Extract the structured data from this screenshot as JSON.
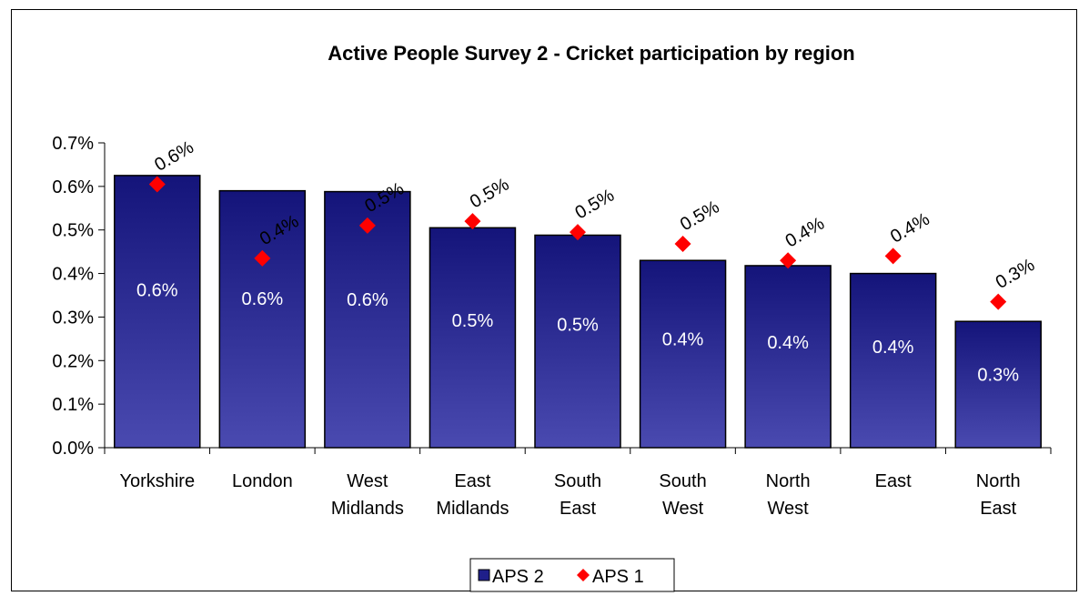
{
  "chart_data": {
    "type": "bar",
    "title": "Active People Survey 2 - Cricket participation by region",
    "categories": [
      [
        "Yorkshire"
      ],
      [
        "London"
      ],
      [
        "West",
        "Midlands"
      ],
      [
        "East",
        "Midlands"
      ],
      [
        "South",
        "East"
      ],
      [
        "South",
        "West"
      ],
      [
        "North",
        "West"
      ],
      [
        "East"
      ],
      [
        "North",
        "East"
      ]
    ],
    "series": [
      {
        "name": "APS 2",
        "kind": "bar",
        "values": [
          0.00625,
          0.0059,
          0.00588,
          0.00505,
          0.00488,
          0.0043,
          0.00418,
          0.004,
          0.0029
        ],
        "labels": [
          "0.6%",
          "0.6%",
          "0.6%",
          "0.5%",
          "0.5%",
          "0.4%",
          "0.4%",
          "0.4%",
          "0.3%"
        ],
        "color": "#1f1f8a"
      },
      {
        "name": "APS 1",
        "kind": "marker",
        "values": [
          0.00605,
          0.00435,
          0.0051,
          0.0052,
          0.00495,
          0.00468,
          0.0043,
          0.0044,
          0.00335
        ],
        "labels": [
          "0.6%",
          "0.4%",
          "0.5%",
          "0.5%",
          "0.5%",
          "0.5%",
          "0.4%",
          "0.4%",
          "0.3%"
        ],
        "color": "#ff0000"
      }
    ],
    "ylim": [
      0,
      0.007
    ],
    "yticks": [
      "0.0%",
      "0.1%",
      "0.2%",
      "0.3%",
      "0.4%",
      "0.5%",
      "0.6%",
      "0.7%"
    ],
    "xlabel": "",
    "ylabel": "",
    "grid": false,
    "legend_position": "bottom"
  }
}
